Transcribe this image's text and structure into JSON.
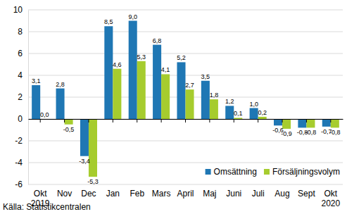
{
  "chart_data": {
    "type": "bar",
    "categories": [
      "Okt 2019",
      "Nov",
      "Dec",
      "Jan",
      "Feb",
      "Mars",
      "April",
      "Maj",
      "Juni",
      "Juli",
      "Aug",
      "Sept",
      "Okt 2020"
    ],
    "series": [
      {
        "name": "Omsättning",
        "color": "#1f77b4",
        "values": [
          3.1,
          2.8,
          -3.4,
          8.5,
          9.0,
          6.8,
          5.2,
          3.5,
          1.2,
          1.0,
          -0.6,
          -0.8,
          -0.7
        ],
        "value_labels": [
          "3,1",
          "2,8",
          "-3,4",
          "8,5",
          "9,0",
          "6,8",
          "5,2",
          "3,5",
          "1,2",
          "1,0",
          "-0,6",
          "-0,8",
          "-0,7"
        ]
      },
      {
        "name": "Försäljningsvolym",
        "color": "#a6cc2e",
        "values": [
          0.0,
          -0.5,
          -5.3,
          4.6,
          5.3,
          4.1,
          2.7,
          1.8,
          0.1,
          0.2,
          -0.9,
          -0.8,
          -0.8
        ],
        "value_labels": [
          "0,0",
          "-0,5",
          "-5,3",
          "4,6",
          "5,3",
          "4,1",
          "2,7",
          "1,8",
          "0,1",
          "0,2",
          "-0,9",
          "-0,8",
          "-0,8"
        ]
      }
    ],
    "ylim": [
      -6,
      10
    ],
    "yticks": [
      -6,
      -4,
      -2,
      0,
      2,
      4,
      6,
      8,
      10
    ],
    "grid": true,
    "legend": "lower right",
    "data_labels": true,
    "annotations": [
      "Källa: Statistikcentralen"
    ]
  }
}
